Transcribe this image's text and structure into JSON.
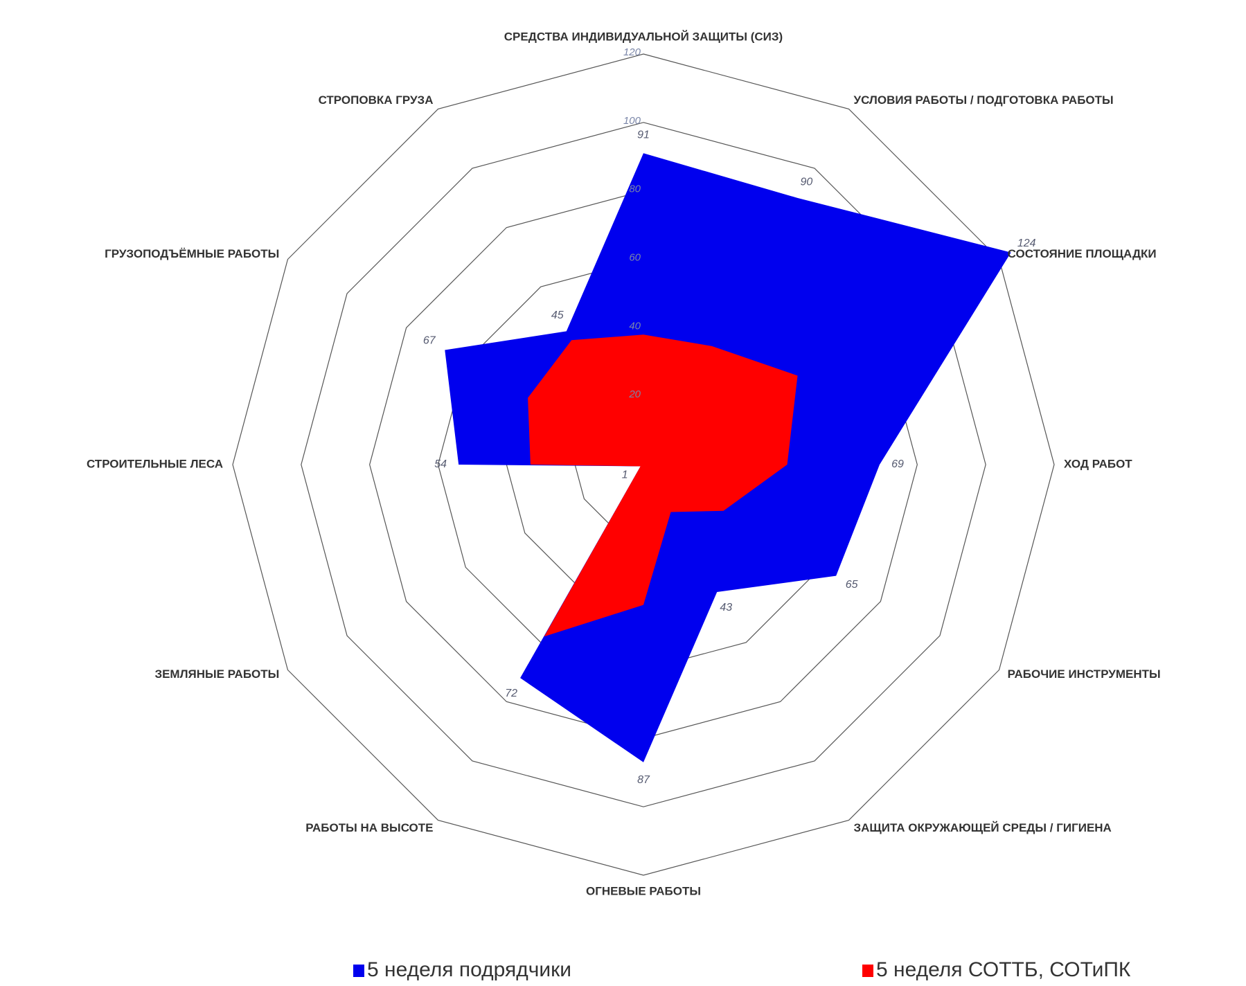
{
  "chart_data": {
    "type": "radar",
    "categories": [
      "СРЕДСТВА ИНДИВИДУАЛЬНОЙ ЗАЩИТЫ (СИЗ)",
      "УСЛОВИЯ РАБОТЫ / ПОДГОТОВКА РАБОТЫ",
      "СОСТОЯНИЕ ПЛОЩАДКИ",
      "ХОД РАБОТ",
      "РАБОЧИЕ ИНСТРУМЕНТЫ",
      "ЗАЩИТА ОКРУЖАЮЩЕЙ СРЕДЫ / ГИГИЕНА",
      "ОГНЕВЫЕ РАБОТЫ",
      "РАБОТЫ НА ВЫСОТЕ",
      "ЗЕМЛЯНЫЕ РАБОТЫ",
      "СТРОИТЕЛЬНЫЕ ЛЕСА",
      "ГРУЗОПОДЪЁМНЫЕ РАБОТЫ",
      "СТРОПОВКА ГРУЗА"
    ],
    "series": [
      {
        "name": "5 неделя подрядчики",
        "color": "#0000ee",
        "values": [
          91,
          90,
          124,
          69,
          65,
          43,
          87,
          72,
          1,
          54,
          67,
          45
        ]
      },
      {
        "name": "5 неделя СОТТБ, СОТиПК",
        "color": "#ff0000",
        "values": [
          38,
          40,
          52,
          42,
          27,
          16,
          41,
          58,
          1,
          33,
          39,
          42
        ]
      }
    ],
    "ylim": [
      0,
      120
    ],
    "yticks": [
      20,
      40,
      60,
      80,
      100,
      120
    ],
    "grid": true,
    "legend": "bottom"
  }
}
